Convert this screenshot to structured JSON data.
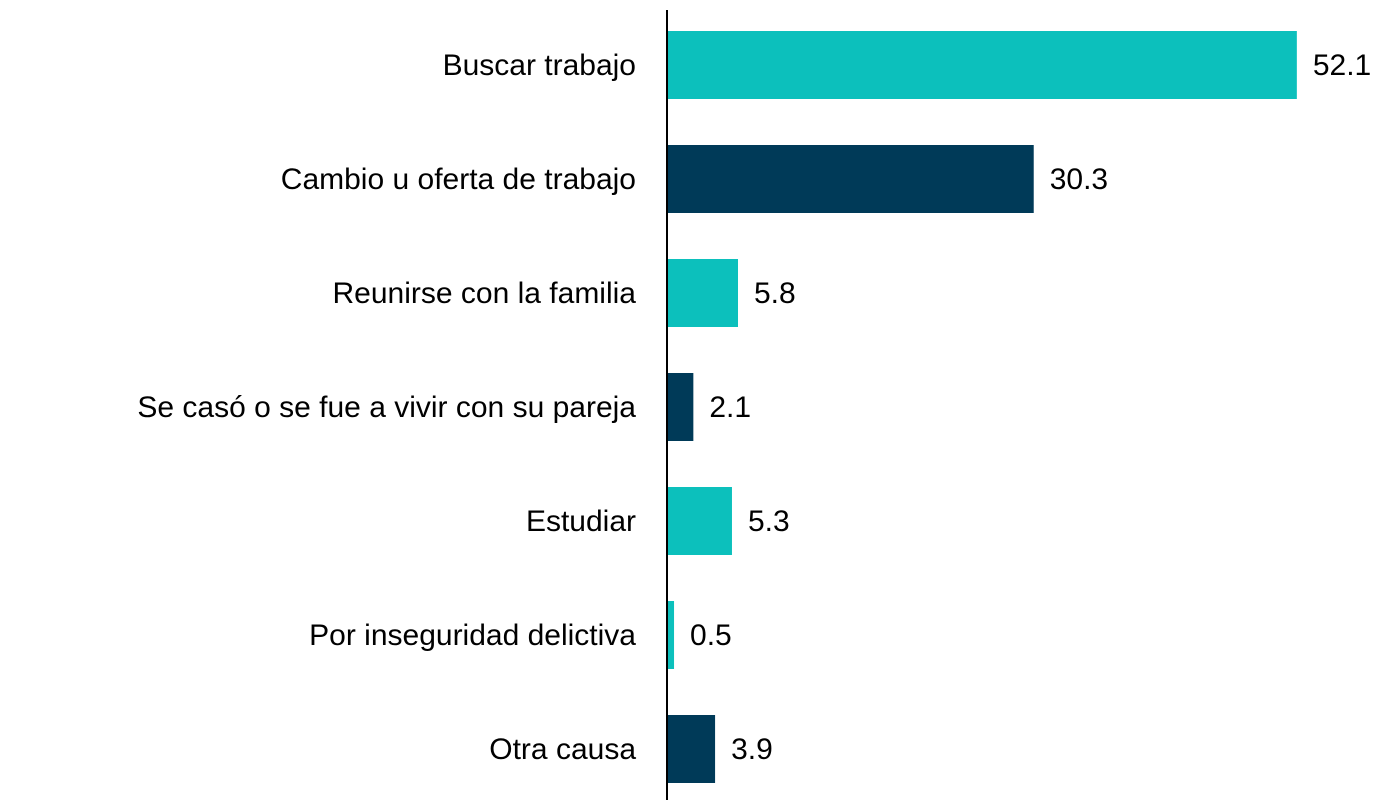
{
  "chart_data": {
    "type": "bar",
    "orientation": "horizontal",
    "categories": [
      "Buscar trabajo",
      "Cambio u oferta de trabajo",
      "Reunirse con la familia",
      "Se casó o se fue a vivir con su pareja",
      "Estudiar",
      "Por inseguridad delictiva",
      "Otra causa"
    ],
    "values": [
      52.1,
      30.3,
      5.8,
      2.1,
      5.3,
      0.5,
      3.9
    ],
    "value_labels": [
      "52.1",
      "30.3",
      "5.8",
      "2.1",
      "5.3",
      "0.5",
      "3.9"
    ],
    "colors": [
      "#0cc0bc",
      "#003a58",
      "#0cc0bc",
      "#003a58",
      "#0cc0bc",
      "#0cc0bc",
      "#003a58"
    ],
    "xlim": [
      0,
      59
    ]
  }
}
